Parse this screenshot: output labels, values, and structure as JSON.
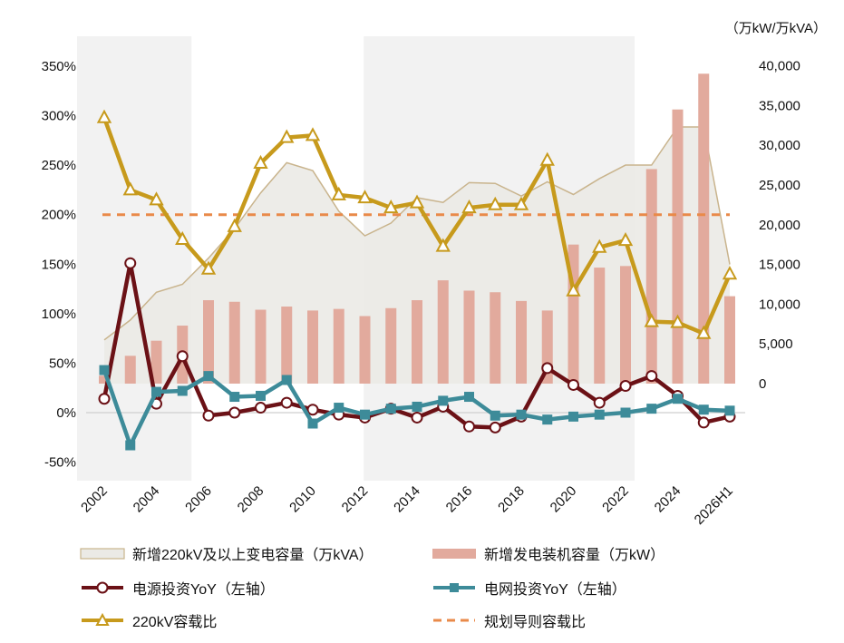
{
  "chart_data": {
    "type": "combo",
    "unit_right": "（万kW/万kVA）",
    "x_labels": [
      "2002",
      "2004",
      "2006",
      "2008",
      "2010",
      "2012",
      "2014",
      "2016",
      "2018",
      "2020",
      "2022",
      "2024",
      "2026H1"
    ],
    "x": [
      "2002",
      "2003",
      "2004",
      "2005",
      "2006",
      "2007",
      "2008",
      "2009",
      "2010",
      "2011",
      "2012",
      "2013",
      "2014",
      "2015",
      "2016",
      "2017",
      "2018",
      "2019",
      "2020",
      "2021",
      "2022",
      "2023",
      "2024",
      "2025",
      "2026H1"
    ],
    "left_axis": {
      "min": -50,
      "max": 350,
      "ticks": [
        -50,
        0,
        50,
        100,
        150,
        200,
        250,
        300,
        350
      ],
      "tick_labels": [
        "-50%",
        "0%",
        "50%",
        "100%",
        "150%",
        "200%",
        "250%",
        "300%",
        "350%"
      ]
    },
    "right_axis": {
      "min": 0,
      "max": 40000,
      "ticks": [
        0,
        5000,
        10000,
        15000,
        20000,
        25000,
        30000,
        35000,
        40000
      ],
      "tick_labels": [
        "0",
        "5,000",
        "10,000",
        "15,000",
        "20,000",
        "25,000",
        "30,000",
        "35,000",
        "40,000"
      ]
    },
    "shaded_periods": [
      [
        "2002",
        "2005"
      ],
      [
        "2013",
        "2022"
      ]
    ],
    "series": [
      {
        "name": "新增220kV及以上变电容量（万kVA）",
        "type": "area",
        "axis": "right",
        "color": "#ebeae6",
        "values": [
          5500,
          8000,
          11500,
          12500,
          15800,
          19500,
          24000,
          27800,
          26800,
          21700,
          18600,
          20200,
          23400,
          22800,
          25300,
          25200,
          23600,
          25400,
          23800,
          25800,
          27500,
          27500,
          32300,
          32300,
          15000
        ]
      },
      {
        "name": "新增发电装机容量（万kW）",
        "type": "bar",
        "axis": "right",
        "color": "#e2aa9d",
        "values": [
          1000,
          3500,
          5400,
          7300,
          10500,
          10300,
          9300,
          9700,
          9200,
          9400,
          8500,
          9500,
          10500,
          13000,
          11700,
          11500,
          10400,
          9200,
          17500,
          14600,
          14800,
          27000,
          34500,
          39000,
          11000
        ]
      },
      {
        "name": "电源投资YoY（左轴）",
        "type": "line",
        "axis": "left",
        "color": "#6b1116",
        "marker": "circle",
        "values": [
          14,
          151,
          9,
          57,
          -3,
          0,
          5,
          10,
          3,
          -2,
          -5,
          4,
          -5,
          6,
          -14,
          -15,
          -4,
          45,
          28,
          10,
          27,
          37,
          17,
          -10,
          -4
        ]
      },
      {
        "name": "电网投资YoY（左轴）",
        "type": "line",
        "axis": "left",
        "color": "#3d8b99",
        "marker": "square",
        "values": [
          43,
          -33,
          21,
          22,
          37,
          16,
          17,
          33,
          -11,
          5,
          -2,
          4,
          6,
          12,
          16,
          -3,
          -2,
          -7,
          -4,
          -2,
          0,
          4,
          14,
          3,
          2
        ]
      },
      {
        "name": "220kV容载比",
        "type": "line",
        "axis": "left",
        "color": "#c79a1c",
        "marker": "triangle",
        "values": [
          298,
          225,
          215,
          175,
          145,
          188,
          252,
          278,
          280,
          220,
          217,
          207,
          212,
          168,
          207,
          210,
          210,
          255,
          123,
          167,
          174,
          92,
          91,
          80,
          140
        ]
      },
      {
        "name": "规划导则容载比",
        "type": "reference",
        "axis": "left",
        "color": "#e98a4a",
        "value": 200
      }
    ]
  }
}
